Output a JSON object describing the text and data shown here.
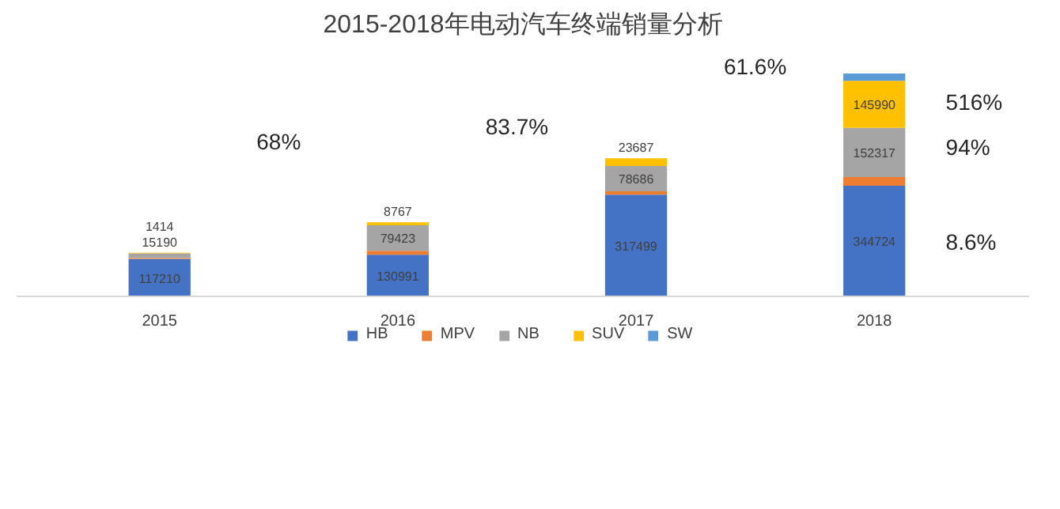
{
  "chart_data": {
    "type": "bar",
    "stacked": true,
    "title": "2015-2018年电动汽车终端销量分析",
    "categories": [
      "2015",
      "2016",
      "2017",
      "2018"
    ],
    "series": [
      {
        "name": "HB",
        "color": "#4472c4",
        "values": [
          117210,
          130991,
          317499,
          344724
        ],
        "value_labels": [
          "117210",
          "130991",
          "317499",
          "344724"
        ]
      },
      {
        "name": "MPV",
        "color": "#ed7d31",
        "values": [
          3000,
          12000,
          10000,
          27000
        ],
        "value_labels": [
          null,
          null,
          null,
          null
        ]
      },
      {
        "name": "NB",
        "color": "#a5a5a5",
        "values": [
          15190,
          79423,
          78686,
          152317
        ],
        "value_labels": [
          "15190",
          "79423",
          "78686",
          "152317"
        ]
      },
      {
        "name": "SUV",
        "color": "#ffc000",
        "values": [
          1414,
          8767,
          23687,
          145990
        ],
        "value_labels": [
          "1414",
          "8767",
          "23687",
          "145990"
        ]
      },
      {
        "name": "SW",
        "color": "#5b9bd5",
        "values": [
          0,
          0,
          0,
          23000
        ],
        "value_labels": [
          null,
          null,
          null,
          null
        ]
      }
    ],
    "annotations": [
      "68%",
      "83.7%",
      "61.6%",
      "516%",
      "94%",
      "8.6%"
    ],
    "legend": "bottom",
    "grid": false
  }
}
